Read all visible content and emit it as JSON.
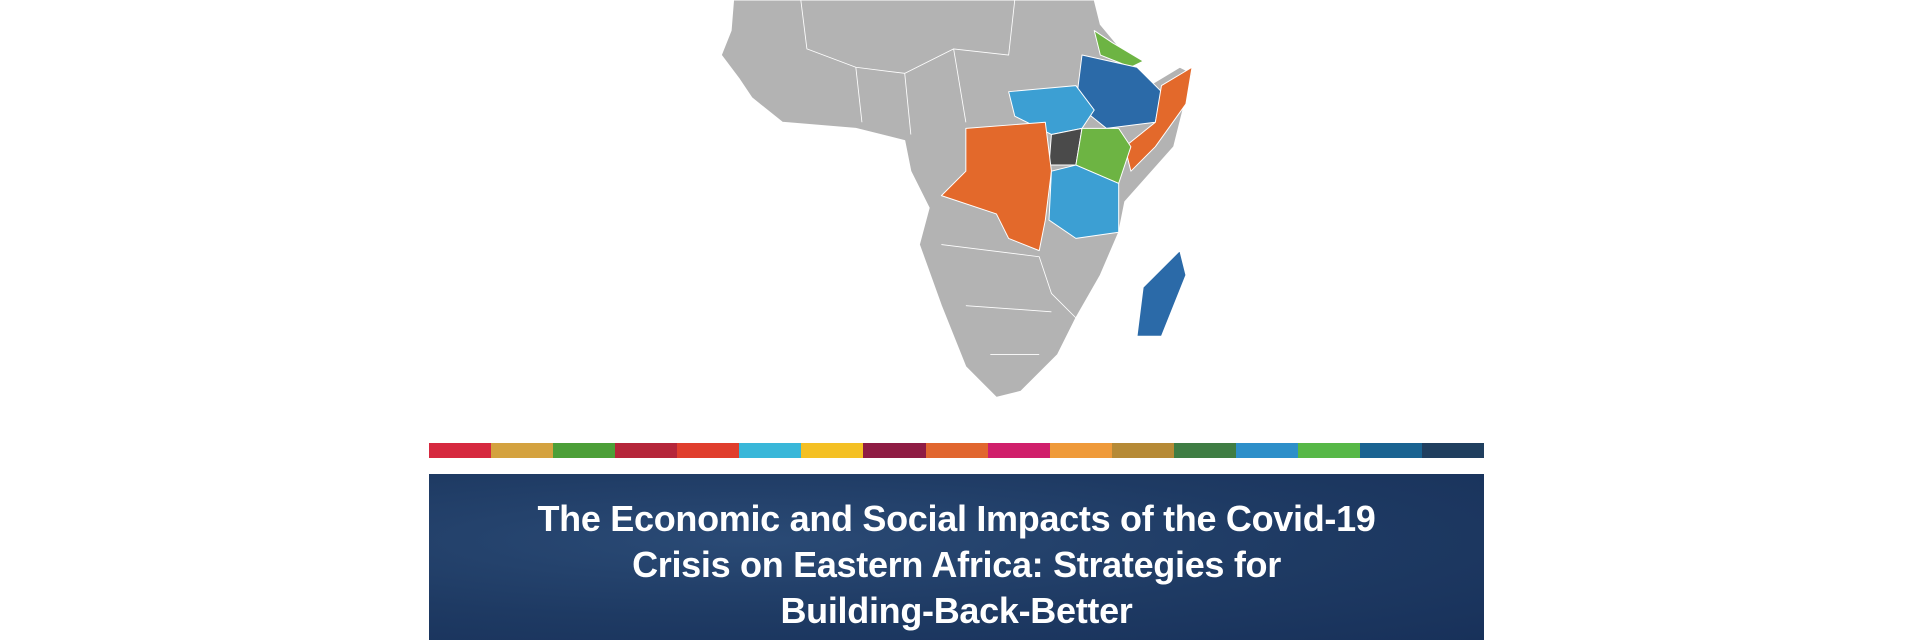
{
  "title": {
    "lines": [
      "The Economic and Social Impacts of the Covid-19",
      "Crisis on Eastern Africa: Strategies for",
      "Building-Back-Better"
    ]
  }
}
